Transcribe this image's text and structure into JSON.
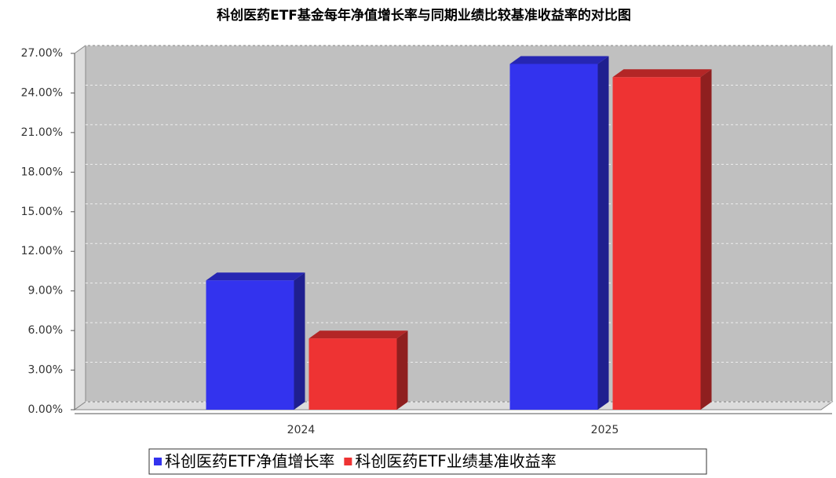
{
  "chart_data": {
    "type": "bar3d",
    "title": "科创医药ETF基金每年净值增长率与同期业绩比较基准收益率的对比图",
    "categories": [
      "2024",
      "2025"
    ],
    "series": [
      {
        "name": "科创医药ETF净值增长率",
        "color": "#3333ee",
        "values": [
          9.8,
          26.2
        ]
      },
      {
        "name": "科创医药ETF业绩基准收益率",
        "color": "#ee3333",
        "values": [
          5.4,
          25.2
        ]
      }
    ],
    "ylim": [
      0,
      27
    ],
    "yticks": [
      {
        "value": 0,
        "label": "0.00%"
      },
      {
        "value": 3,
        "label": "3.00%"
      },
      {
        "value": 6,
        "label": "6.00%"
      },
      {
        "value": 9,
        "label": "9.00%"
      },
      {
        "value": 12,
        "label": "12.00%"
      },
      {
        "value": 15,
        "label": "15.00%"
      },
      {
        "value": 18,
        "label": "18.00%"
      },
      {
        "value": 21,
        "label": "21.00%"
      },
      {
        "value": 24,
        "label": "24.00%"
      },
      {
        "value": 27,
        "label": "27.00%"
      }
    ],
    "grid": true
  }
}
